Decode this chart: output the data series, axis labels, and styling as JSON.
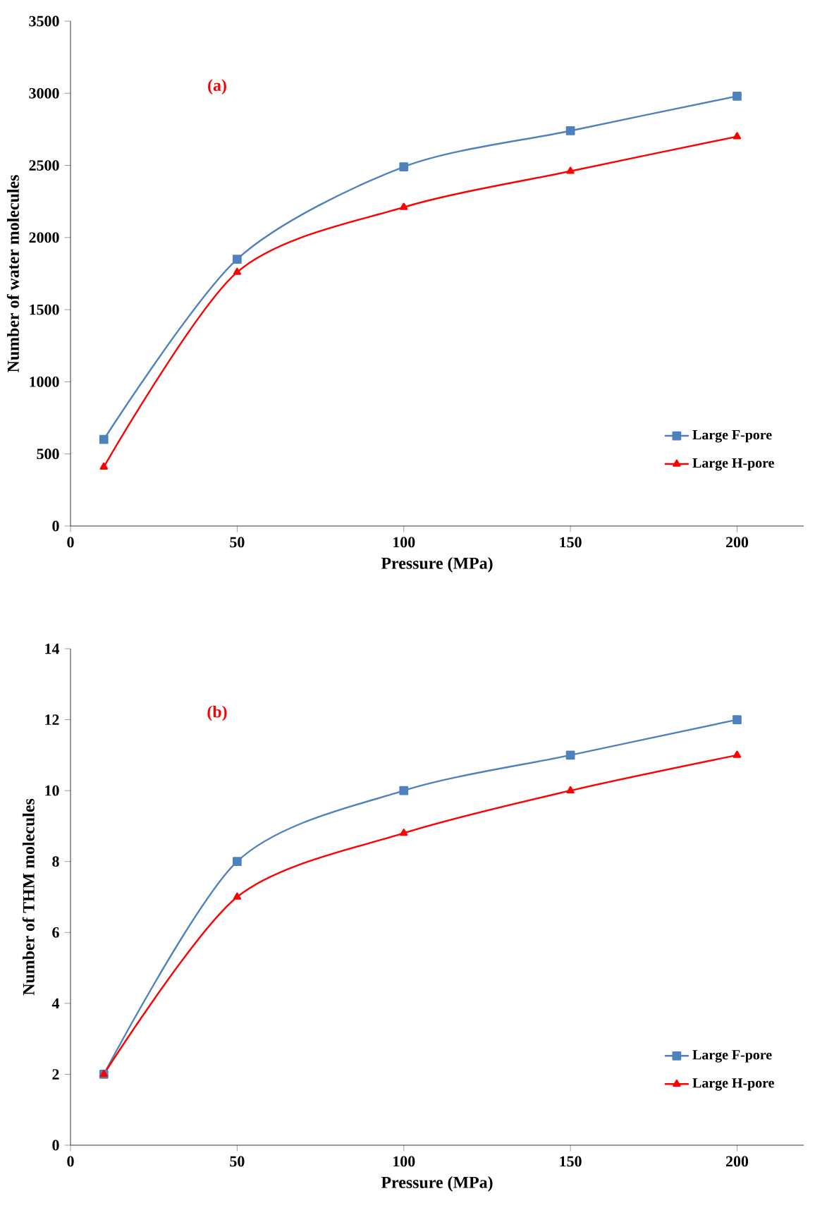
{
  "chart_data": [
    {
      "type": "line",
      "ylabel": "Number of water molecules",
      "xlabel": "Pressure (MPa)",
      "annotations": [
        "(a)"
      ],
      "x": [
        10,
        50,
        100,
        150,
        200
      ],
      "xlim": [
        0,
        220
      ],
      "xticks": [
        0,
        50,
        100,
        150,
        200
      ],
      "ylim": [
        0,
        3500
      ],
      "yticks": [
        0,
        500,
        1000,
        1500,
        2000,
        2500,
        3000,
        3500
      ],
      "grid": false,
      "legend": "bottom right",
      "series": [
        {
          "name": "Large F-pore",
          "color": "#4f81bd",
          "marker": "square",
          "values": [
            600,
            1850,
            2490,
            2740,
            2980
          ]
        },
        {
          "name": "Large H-pore",
          "color": "#ff0000",
          "marker": "triangle",
          "values": [
            410,
            1760,
            2210,
            2460,
            2700
          ]
        }
      ]
    },
    {
      "type": "line",
      "ylabel": "Number of THM molecules",
      "xlabel": "Pressure (MPa)",
      "annotations": [
        "(b)"
      ],
      "x": [
        10,
        50,
        100,
        150,
        200
      ],
      "xlim": [
        0,
        220
      ],
      "xticks": [
        0,
        50,
        100,
        150,
        200
      ],
      "ylim": [
        0,
        14
      ],
      "yticks": [
        0,
        2,
        4,
        6,
        8,
        10,
        12,
        14
      ],
      "grid": false,
      "legend": "bottom right",
      "series": [
        {
          "name": "Large F-pore",
          "color": "#4f81bd",
          "marker": "square",
          "values": [
            2,
            8,
            10,
            11,
            12
          ]
        },
        {
          "name": "Large H-pore",
          "color": "#ff0000",
          "marker": "triangle",
          "values": [
            2,
            7,
            8.8,
            10,
            11
          ]
        }
      ]
    }
  ]
}
